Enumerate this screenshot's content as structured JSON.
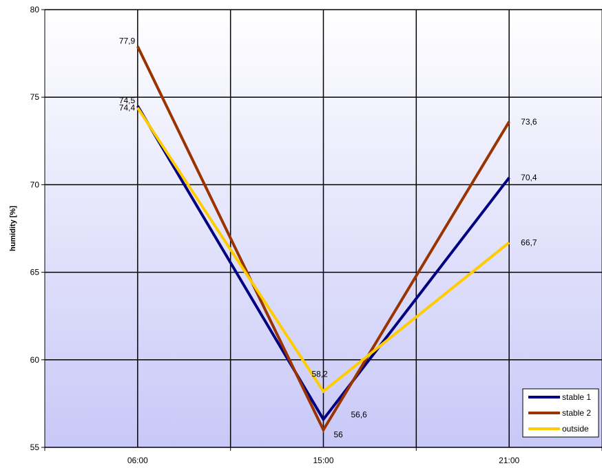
{
  "chart_data": {
    "type": "line",
    "ylabel": "humidity [%]",
    "xlabel": "",
    "categories": [
      "06:00",
      "15:00",
      "21:00"
    ],
    "ylim": [
      55,
      80
    ],
    "yticks": [
      55,
      60,
      65,
      70,
      75,
      80
    ],
    "grid": true,
    "legend_position": "bottom-right",
    "series": [
      {
        "name": "stable 1",
        "color": "#000080",
        "values": [
          74.5,
          56.6,
          70.4
        ],
        "labels": [
          "74,5",
          "56,6",
          "70,4"
        ]
      },
      {
        "name": "stable 2",
        "color": "#993300",
        "values": [
          77.9,
          56.0,
          73.6
        ],
        "labels": [
          "77,9",
          "56",
          "73,6"
        ]
      },
      {
        "name": "outside",
        "color": "#FFCC00",
        "values": [
          74.4,
          58.2,
          66.7
        ],
        "labels": [
          "74,4",
          "58,2",
          "66,7"
        ]
      }
    ]
  }
}
